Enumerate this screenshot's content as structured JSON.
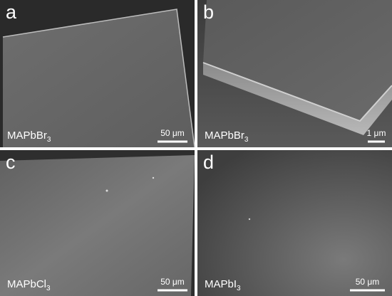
{
  "panels": [
    {
      "letter": "a",
      "sample": {
        "base": "MAPbBr",
        "sub": "3"
      },
      "scale_bar": "50 μm"
    },
    {
      "letter": "b",
      "sample": {
        "base": "MAPbBr",
        "sub": "3"
      },
      "scale_bar": "1 μm"
    },
    {
      "letter": "c",
      "sample": {
        "base": "MAPbCl",
        "sub": "3"
      },
      "scale_bar": "50 μm"
    },
    {
      "letter": "d",
      "sample": {
        "base": "MAPbI",
        "sub": "3"
      },
      "scale_bar": "50 μm"
    }
  ]
}
